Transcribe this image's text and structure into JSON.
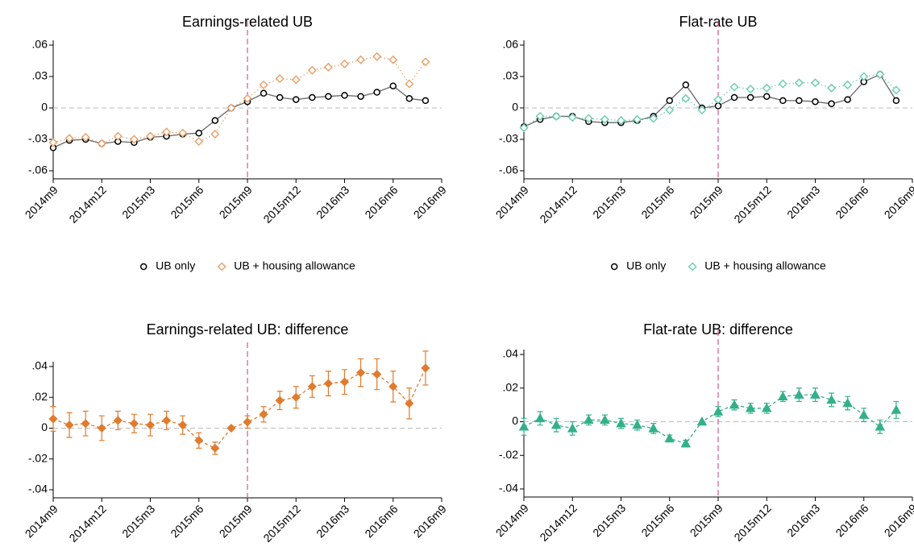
{
  "chart_data": [
    {
      "type": "line",
      "title": "Earnings-related UB",
      "legend": "bottom",
      "grid": false,
      "x": [
        0,
        1,
        2,
        3,
        4,
        5,
        6,
        7,
        8,
        9,
        10,
        11,
        12,
        13,
        14,
        15,
        16,
        17,
        18,
        19,
        20,
        21,
        22,
        23
      ],
      "xlim": [
        0,
        24
      ],
      "xticks": [
        {
          "value": 0,
          "label": "2014m9"
        },
        {
          "value": 3,
          "label": "2014m12"
        },
        {
          "value": 6,
          "label": "2015m3"
        },
        {
          "value": 9,
          "label": "2015m6"
        },
        {
          "value": 12,
          "label": "2015m9"
        },
        {
          "value": 15,
          "label": "2015m12"
        },
        {
          "value": 18,
          "label": "2016m3"
        },
        {
          "value": 21,
          "label": "2016m6"
        },
        {
          "value": 24,
          "label": "2016m9"
        }
      ],
      "ylim": [
        -0.06,
        0.06
      ],
      "yticks": [
        {
          "value": -0.06,
          "label": "-.06"
        },
        {
          "value": -0.03,
          "label": "-.03"
        },
        0,
        {
          "value": 0.03,
          "label": ".03"
        },
        {
          "value": 0.06,
          "label": ".06"
        }
      ],
      "vline": 12,
      "hline": 0,
      "series": [
        {
          "name": "UB only",
          "color": "#000000",
          "line_color": "#666666",
          "line_style": "solid",
          "marker": "circle",
          "filled": false,
          "values": [
            -0.038,
            -0.031,
            -0.03,
            -0.034,
            -0.032,
            -0.033,
            -0.028,
            -0.027,
            -0.025,
            -0.024,
            -0.012,
            0.0,
            0.006,
            0.014,
            0.01,
            0.008,
            0.01,
            0.011,
            0.012,
            0.011,
            0.015,
            0.021,
            0.009,
            0.007
          ]
        },
        {
          "name": "UB + housing allowance",
          "color": "#e8a36e",
          "line_color": "#e8a36e",
          "line_style": "dotted",
          "marker": "diamond",
          "filled": false,
          "values": [
            -0.033,
            -0.029,
            -0.028,
            -0.034,
            -0.027,
            -0.03,
            -0.027,
            -0.023,
            -0.024,
            -0.032,
            -0.025,
            0.0,
            0.009,
            0.022,
            0.028,
            0.027,
            0.036,
            0.039,
            0.042,
            0.046,
            0.049,
            0.046,
            0.023,
            0.044
          ]
        }
      ]
    },
    {
      "type": "line",
      "title": "Flat-rate UB",
      "legend": "bottom",
      "grid": false,
      "x": [
        0,
        1,
        2,
        3,
        4,
        5,
        6,
        7,
        8,
        9,
        10,
        11,
        12,
        13,
        14,
        15,
        16,
        17,
        18,
        19,
        20,
        21,
        22,
        23
      ],
      "xlim": [
        0,
        24
      ],
      "xticks": [
        {
          "value": 0,
          "label": "2014m9"
        },
        {
          "value": 3,
          "label": "2014m12"
        },
        {
          "value": 6,
          "label": "2015m3"
        },
        {
          "value": 9,
          "label": "2015m6"
        },
        {
          "value": 12,
          "label": "2015m9"
        },
        {
          "value": 15,
          "label": "2015m12"
        },
        {
          "value": 18,
          "label": "2016m3"
        },
        {
          "value": 21,
          "label": "2016m6"
        },
        {
          "value": 24,
          "label": "2016m9"
        }
      ],
      "ylim": [
        -0.06,
        0.06
      ],
      "yticks": [
        {
          "value": -0.06,
          "label": "-.06"
        },
        {
          "value": -0.03,
          "label": "-.03"
        },
        0,
        {
          "value": 0.03,
          "label": ".03"
        },
        {
          "value": 0.06,
          "label": ".06"
        }
      ],
      "vline": 12,
      "hline": 0,
      "series": [
        {
          "name": "UB only",
          "color": "#000000",
          "line_color": "#666666",
          "line_style": "solid",
          "marker": "circle",
          "filled": false,
          "values": [
            -0.018,
            -0.011,
            -0.008,
            -0.008,
            -0.013,
            -0.014,
            -0.014,
            -0.012,
            -0.008,
            0.007,
            0.022,
            0.0,
            0.002,
            0.01,
            0.01,
            0.011,
            0.007,
            0.007,
            0.006,
            0.004,
            0.008,
            0.025,
            0.032,
            0.007
          ]
        },
        {
          "name": "UB + housing allowance",
          "color": "#6fcfb0",
          "line_color": "#6fcfb0",
          "line_style": "dotted",
          "marker": "diamond",
          "filled": false,
          "values": [
            -0.019,
            -0.008,
            -0.008,
            -0.009,
            -0.01,
            -0.011,
            -0.012,
            -0.011,
            -0.01,
            -0.002,
            0.009,
            -0.002,
            0.008,
            0.02,
            0.018,
            0.019,
            0.023,
            0.024,
            0.024,
            0.019,
            0.022,
            0.03,
            0.032,
            0.017
          ]
        }
      ]
    },
    {
      "type": "line",
      "title": "Earnings-related UB: difference",
      "grid": false,
      "x": [
        0,
        1,
        2,
        3,
        4,
        5,
        6,
        7,
        8,
        9,
        10,
        11,
        12,
        13,
        14,
        15,
        16,
        17,
        18,
        19,
        20,
        21,
        22,
        23
      ],
      "xlim": [
        0,
        24
      ],
      "xticks": [
        {
          "value": 0,
          "label": "2014m9"
        },
        {
          "value": 3,
          "label": "2014m12"
        },
        {
          "value": 6,
          "label": "2015m3"
        },
        {
          "value": 9,
          "label": "2015m6"
        },
        {
          "value": 12,
          "label": "2015m9"
        },
        {
          "value": 15,
          "label": "2015m12"
        },
        {
          "value": 18,
          "label": "2016m3"
        },
        {
          "value": 21,
          "label": "2016m6"
        },
        {
          "value": 24,
          "label": "2016m9"
        }
      ],
      "ylim": [
        -0.04,
        0.04
      ],
      "yticks": [
        {
          "value": -0.04,
          "label": "-.04"
        },
        {
          "value": -0.02,
          "label": "-.02"
        },
        0,
        {
          "value": 0.02,
          "label": ".02"
        },
        {
          "value": 0.04,
          "label": ".04"
        }
      ],
      "vline": 12,
      "hline": 0,
      "series": [
        {
          "color": "#e07b2e",
          "line_color": "#e07b2e",
          "line_style": "dashed",
          "marker": "diamond",
          "filled": true,
          "values": [
            0.006,
            0.002,
            0.003,
            0.0,
            0.005,
            0.003,
            0.002,
            0.005,
            0.002,
            -0.008,
            -0.013,
            0.0,
            0.004,
            0.009,
            0.018,
            0.02,
            0.027,
            0.029,
            0.03,
            0.036,
            0.035,
            0.027,
            0.016,
            0.039
          ],
          "errors": [
            0.008,
            0.008,
            0.008,
            0.008,
            0.006,
            0.006,
            0.007,
            0.006,
            0.006,
            0.005,
            0.004,
            0,
            0.004,
            0.005,
            0.006,
            0.007,
            0.007,
            0.008,
            0.008,
            0.009,
            0.01,
            0.01,
            0.01,
            0.011
          ]
        }
      ]
    },
    {
      "type": "line",
      "title": "Flat-rate UB: difference",
      "grid": false,
      "x": [
        0,
        1,
        2,
        3,
        4,
        5,
        6,
        7,
        8,
        9,
        10,
        11,
        12,
        13,
        14,
        15,
        16,
        17,
        18,
        19,
        20,
        21,
        22,
        23
      ],
      "xlim": [
        0,
        24
      ],
      "xticks": [
        {
          "value": 0,
          "label": "2014m9"
        },
        {
          "value": 3,
          "label": "2014m12"
        },
        {
          "value": 6,
          "label": "2015m3"
        },
        {
          "value": 9,
          "label": "2015m6"
        },
        {
          "value": 12,
          "label": "2015m9"
        },
        {
          "value": 15,
          "label": "2015m12"
        },
        {
          "value": 18,
          "label": "2016m3"
        },
        {
          "value": 21,
          "label": "2016m6"
        },
        {
          "value": 24,
          "label": "2016m9"
        }
      ],
      "ylim": [
        -0.04,
        0.04
      ],
      "yticks": [
        {
          "value": -0.04,
          "label": "-.04"
        },
        {
          "value": -0.02,
          "label": "-.02"
        },
        0,
        {
          "value": 0.02,
          "label": ".02"
        },
        {
          "value": 0.04,
          "label": ".04"
        }
      ],
      "vline": 12,
      "hline": 0,
      "series": [
        {
          "color": "#33b08a",
          "line_color": "#33b08a",
          "line_style": "dashed",
          "marker": "triangle",
          "filled": true,
          "values": [
            -0.003,
            0.002,
            -0.002,
            -0.004,
            0.001,
            0.001,
            -0.001,
            -0.002,
            -0.004,
            -0.01,
            -0.013,
            0.0,
            0.006,
            0.01,
            0.008,
            0.008,
            0.015,
            0.016,
            0.016,
            0.013,
            0.011,
            0.004,
            -0.003,
            0.007
          ],
          "errors": [
            0.005,
            0.004,
            0.004,
            0.004,
            0.003,
            0.003,
            0.003,
            0.003,
            0.003,
            0.002,
            0.002,
            0,
            0.003,
            0.003,
            0.003,
            0.003,
            0.003,
            0.004,
            0.004,
            0.004,
            0.004,
            0.004,
            0.004,
            0.005
          ]
        }
      ]
    }
  ]
}
